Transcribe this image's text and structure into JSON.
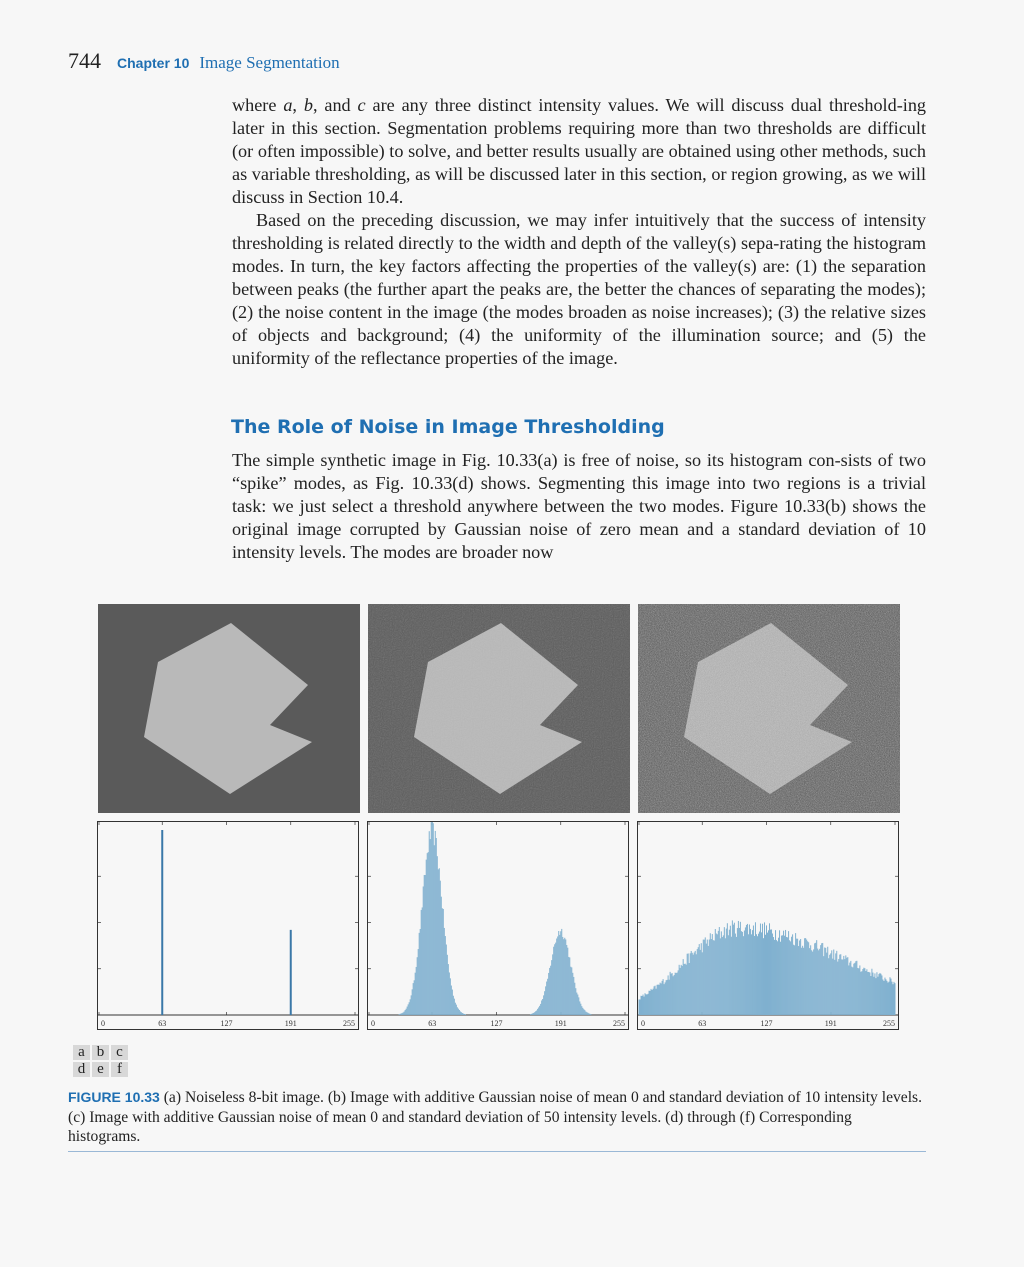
{
  "header": {
    "page_number": "744",
    "chapter": "Chapter 10",
    "chapter_title": "Image Segmentation"
  },
  "section_heading": "The Role of Noise in Image Thresholding",
  "figure": {
    "label": "FIGURE 10.33",
    "caption": "(a) Noiseless 8-bit image. (b) Image with additive Gaussian noise of mean 0 and standard deviation of 10 intensity levels. (c) Image with additive Gaussian noise of mean 0 and standard deviation of 50 intensity levels. (d) through (f) Corresponding histograms.",
    "sublabels": [
      [
        "a",
        "b",
        "c"
      ],
      [
        "d",
        "e",
        "f"
      ]
    ],
    "tick_labels": [
      "0",
      "63",
      "127",
      "191",
      "255"
    ],
    "colors": {
      "bars": "#3a78a8",
      "noisy_bars": "#7fb0cf",
      "accent": "#1f6fb2"
    }
  },
  "chart_data": [
    {
      "type": "bar",
      "name": "d",
      "x": [
        63,
        191
      ],
      "values": [
        1.0,
        0.46
      ],
      "xlim": [
        0,
        255
      ],
      "ylim": [
        0,
        1.05
      ],
      "grid": false
    },
    {
      "type": "bar",
      "name": "e",
      "shape": "two Gaussian modes",
      "modes": [
        {
          "mean": 63,
          "sd": 10,
          "peak": 1.0
        },
        {
          "mean": 191,
          "sd": 10,
          "peak": 0.46
        }
      ],
      "xlim": [
        0,
        255
      ],
      "ylim": [
        0,
        1.05
      ],
      "grid": false
    },
    {
      "type": "bar",
      "name": "f",
      "shape": "broad merged distribution",
      "peak_x": 100,
      "peak_value": 0.48,
      "xlim": [
        0,
        255
      ],
      "ylim": [
        0,
        1.05
      ],
      "grid": false
    }
  ]
}
